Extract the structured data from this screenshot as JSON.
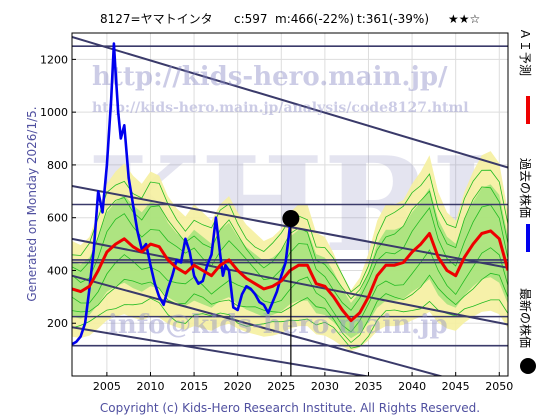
{
  "header": {
    "code_name": "8127=ヤマトインタ",
    "current": "c:597",
    "max_info": "m:466(-22%)",
    "target_info": "t:361(-39%)",
    "stars": "★★☆"
  },
  "watermarks": {
    "url_big": "http://kids-hero.main.jp/",
    "url_small": "http://kids-hero.main.jp/analysis/code8127.html",
    "logo": "KHRI",
    "email": "info@kids-hero.main.jp"
  },
  "footer": "Copyright (c) Kids-Hero Research Institute. All Rights Reserved.",
  "side_label": "Generated on Monday 2026/1/5.",
  "legend": {
    "ai": "ＡＩ予測",
    "past": "過去の株価",
    "latest": "最新の株価"
  },
  "colors": {
    "price": "#0000ee",
    "ai": "#ee0000",
    "band_fill": "#f5f0a0",
    "band_line": "#22bb22",
    "band_green": "#90e070",
    "trend": "#3a3a6a",
    "dot": "#000000"
  },
  "chart_data": {
    "type": "line",
    "xlim": [
      2001,
      2051
    ],
    "ylim": [
      0,
      1300
    ],
    "xticks": [
      2005,
      2010,
      2015,
      2020,
      2025,
      2030,
      2035,
      2040,
      2045,
      2050
    ],
    "yticks": [
      200,
      400,
      600,
      800,
      1000,
      1200
    ],
    "horizontal_levels": [
      1250,
      650,
      440,
      430,
      225,
      115
    ],
    "trend_lines": [
      {
        "from": [
          2001,
          1285
        ],
        "to": [
          2051,
          790
        ]
      },
      {
        "from": [
          2001,
          720
        ],
        "to": [
          2051,
          410
        ]
      },
      {
        "from": [
          2001,
          520
        ],
        "to": [
          2051,
          195
        ]
      },
      {
        "from": [
          2001,
          380
        ],
        "to": [
          2051,
          -70
        ]
      },
      {
        "from": [
          2001,
          185
        ],
        "to": [
          2051,
          -90
        ]
      }
    ],
    "latest_point": {
      "x": 2026.1,
      "y": 597
    },
    "series": [
      {
        "name": "過去の株価",
        "x": [
          2001,
          2001.5,
          2002,
          2002.5,
          2003,
          2003.5,
          2004,
          2004.5,
          2005,
          2005.5,
          2005.8,
          2006,
          2006.3,
          2006.6,
          2007,
          2007.5,
          2008,
          2008.5,
          2009,
          2009.5,
          2010,
          2010.5,
          2011,
          2011.5,
          2012,
          2012.5,
          2013,
          2013.5,
          2014,
          2014.5,
          2015,
          2015.5,
          2016,
          2016.5,
          2017,
          2017.5,
          2018,
          2018.3,
          2018.6,
          2019,
          2019.5,
          2020,
          2020.5,
          2021,
          2021.5,
          2022,
          2022.5,
          2023,
          2023.5,
          2024,
          2024.5,
          2025,
          2025.5,
          2026.1
        ],
        "y": [
          120,
          130,
          150,
          200,
          330,
          480,
          700,
          620,
          800,
          1050,
          1260,
          1150,
          1000,
          900,
          950,
          750,
          650,
          550,
          480,
          500,
          420,
          350,
          300,
          270,
          330,
          380,
          440,
          430,
          520,
          470,
          380,
          350,
          360,
          420,
          460,
          600,
          460,
          380,
          420,
          400,
          260,
          250,
          310,
          340,
          330,
          310,
          280,
          270,
          240,
          280,
          320,
          380,
          430,
          597
        ]
      },
      {
        "name": "ＡＩ予測",
        "x": [
          2001,
          2002,
          2003,
          2004,
          2005,
          2006,
          2007,
          2008,
          2009,
          2010,
          2011,
          2012,
          2013,
          2014,
          2015,
          2016,
          2017,
          2018,
          2019,
          2020,
          2021,
          2022,
          2023,
          2024,
          2025,
          2026,
          2027,
          2028,
          2029,
          2030,
          2031,
          2032,
          2033,
          2034,
          2035,
          2036,
          2037,
          2038,
          2039,
          2040,
          2041,
          2042,
          2043,
          2044,
          2045,
          2046,
          2047,
          2048,
          2049,
          2050,
          2051
        ],
        "y": [
          330,
          320,
          340,
          400,
          470,
          500,
          520,
          490,
          470,
          500,
          490,
          440,
          410,
          390,
          420,
          400,
          380,
          420,
          440,
          400,
          370,
          350,
          330,
          340,
          360,
          400,
          420,
          420,
          350,
          340,
          300,
          250,
          210,
          240,
          300,
          380,
          420,
          420,
          430,
          470,
          500,
          540,
          450,
          400,
          380,
          450,
          500,
          540,
          550,
          520,
          400
        ]
      }
    ]
  }
}
